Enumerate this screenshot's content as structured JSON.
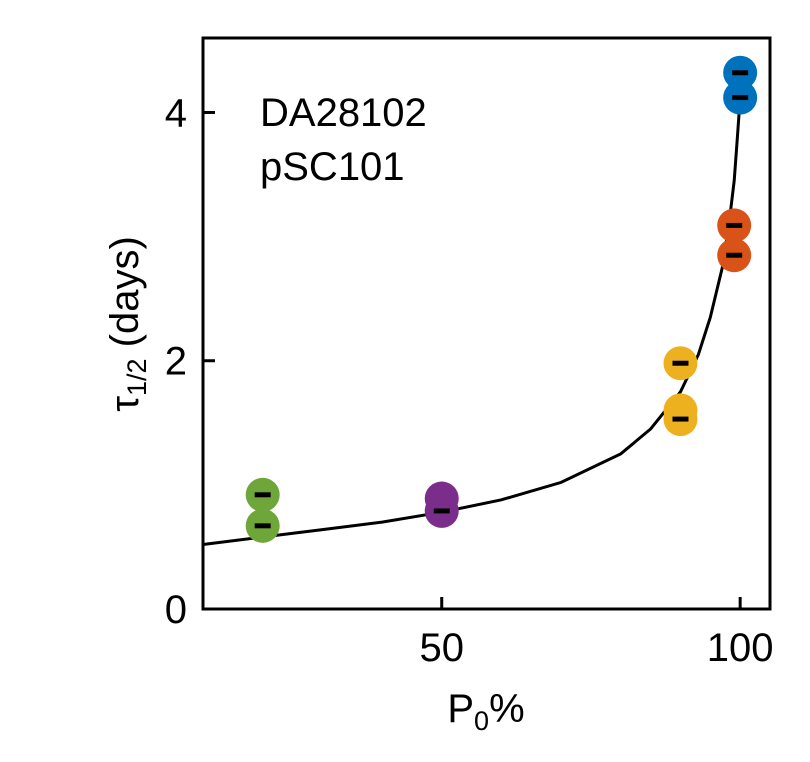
{
  "chart_data": {
    "type": "scatter",
    "annotation_lines": [
      "DA28102",
      "pSC101"
    ],
    "xlabel_main": "P",
    "xlabel_sub": "0",
    "xlabel_suffix": "%",
    "ylabel_main": "τ",
    "ylabel_sub": "1/2",
    "ylabel_suffix": " (days)",
    "xlim": [
      10,
      105
    ],
    "ylim": [
      0,
      4.6
    ],
    "x_ticks": [
      50,
      100
    ],
    "x_tick_labels": [
      "50",
      "100"
    ],
    "y_ticks": [
      0,
      2,
      4
    ],
    "y_tick_labels": [
      "0",
      "2",
      "4"
    ],
    "grid": false,
    "points": [
      {
        "x": 20,
        "y": 0.92,
        "color": "#6fa63a",
        "err": 0.02
      },
      {
        "x": 20,
        "y": 0.67,
        "color": "#6fa63a",
        "err": 0.02
      },
      {
        "x": 50,
        "y": 0.89,
        "color": "#7b2d8b",
        "err": 0.02
      },
      {
        "x": 50,
        "y": 0.79,
        "color": "#7b2d8b",
        "err": 0.02
      },
      {
        "x": 90,
        "y": 1.98,
        "color": "#edb120",
        "err": 0.02
      },
      {
        "x": 90,
        "y": 1.6,
        "color": "#edb120",
        "err": 0.02
      },
      {
        "x": 90,
        "y": 1.53,
        "color": "#edb120",
        "err": 0.02
      },
      {
        "x": 99,
        "y": 3.09,
        "color": "#d95319",
        "err": 0.02
      },
      {
        "x": 99,
        "y": 2.85,
        "color": "#d95319",
        "err": 0.02
      },
      {
        "x": 100,
        "y": 4.32,
        "color": "#0072bd",
        "err": 0.02
      },
      {
        "x": 100,
        "y": 4.12,
        "color": "#0072bd",
        "err": 0.02
      }
    ],
    "fit_curve": [
      {
        "x": 10,
        "y": 0.52
      },
      {
        "x": 20,
        "y": 0.58
      },
      {
        "x": 30,
        "y": 0.64
      },
      {
        "x": 40,
        "y": 0.7
      },
      {
        "x": 50,
        "y": 0.78
      },
      {
        "x": 60,
        "y": 0.88
      },
      {
        "x": 70,
        "y": 1.02
      },
      {
        "x": 80,
        "y": 1.25
      },
      {
        "x": 85,
        "y": 1.45
      },
      {
        "x": 90,
        "y": 1.75
      },
      {
        "x": 93,
        "y": 2.05
      },
      {
        "x": 95,
        "y": 2.35
      },
      {
        "x": 97,
        "y": 2.75
      },
      {
        "x": 98,
        "y": 3.05
      },
      {
        "x": 99,
        "y": 3.45
      },
      {
        "x": 99.5,
        "y": 3.78
      },
      {
        "x": 100,
        "y": 4.12
      }
    ]
  }
}
